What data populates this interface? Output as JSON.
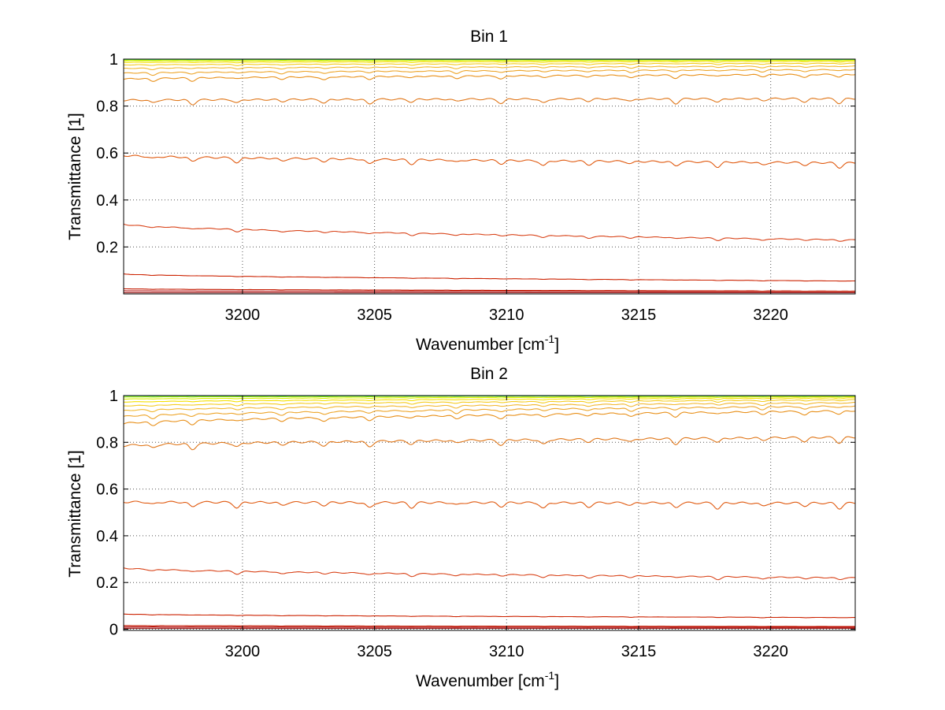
{
  "chart_data": [
    {
      "type": "line",
      "title": "Bin 1",
      "xlabel": "Wavenumber [cm",
      "xlabel_sup": "-1",
      "xlabel_end": "]",
      "ylabel": "Transmittance [1]",
      "xlim": [
        3195.5,
        3223.2
      ],
      "ylim": [
        0.0,
        1.0
      ],
      "xticks": [
        3200,
        3205,
        3210,
        3215,
        3220
      ],
      "xtick_labels": [
        "3200",
        "3205",
        "3210",
        "3215",
        "3220"
      ],
      "yticks": [
        0.2,
        0.4,
        0.6,
        0.8,
        1.0
      ],
      "ytick_labels": [
        "0.2",
        "0.4",
        "0.6",
        "0.8",
        "1"
      ],
      "grid": true,
      "series": [
        {
          "start": 0.005,
          "end": 0.005,
          "depth": 0.0,
          "color": "#8b0000"
        },
        {
          "start": 0.013,
          "end": 0.01,
          "depth": 0.0,
          "color": "#b00000"
        },
        {
          "start": 0.022,
          "end": 0.012,
          "depth": 0.001,
          "color": "#c41a00"
        },
        {
          "start": 0.085,
          "end": 0.055,
          "depth": 0.002,
          "color": "#cc2200"
        },
        {
          "start": 0.297,
          "end": 0.23,
          "depth": 0.01,
          "color": "#d9441a"
        },
        {
          "start": 0.59,
          "end": 0.558,
          "depth": 0.022,
          "color": "#e05a10"
        },
        {
          "start": 0.825,
          "end": 0.832,
          "depth": 0.02,
          "color": "#e0771a"
        },
        {
          "start": 0.915,
          "end": 0.935,
          "depth": 0.014,
          "color": "#e8901a"
        },
        {
          "start": 0.94,
          "end": 0.955,
          "depth": 0.01,
          "color": "#eda52a"
        },
        {
          "start": 0.96,
          "end": 0.97,
          "depth": 0.007,
          "color": "#f2b830"
        },
        {
          "start": 0.975,
          "end": 0.982,
          "depth": 0.005,
          "color": "#f5cc20"
        },
        {
          "start": 0.986,
          "end": 0.99,
          "depth": 0.003,
          "color": "#f5e000"
        },
        {
          "start": 0.993,
          "end": 0.995,
          "depth": 0.002,
          "color": "#d8f000"
        },
        {
          "start": 0.997,
          "end": 0.998,
          "depth": 0.001,
          "color": "#9cf000"
        },
        {
          "start": 0.999,
          "end": 0.999,
          "depth": 0.001,
          "color": "#40e080"
        },
        {
          "start": 1.0,
          "end": 1.0,
          "depth": 0.0,
          "color": "#20c8e0"
        }
      ]
    },
    {
      "type": "line",
      "title": "Bin 2",
      "xlabel": "Wavenumber [cm",
      "xlabel_sup": "-1",
      "xlabel_end": "]",
      "ylabel": "Transmittance [1]",
      "xlim": [
        3195.5,
        3223.2
      ],
      "ylim": [
        0.0,
        1.0
      ],
      "xticks": [
        3200,
        3205,
        3210,
        3215,
        3220
      ],
      "xtick_labels": [
        "3200",
        "3205",
        "3210",
        "3215",
        "3220"
      ],
      "yticks": [
        0.0,
        0.2,
        0.4,
        0.6,
        0.8,
        1.0
      ],
      "ytick_labels": [
        "0",
        "0.2",
        "0.4",
        "0.6",
        "0.8",
        "1"
      ],
      "grid": true,
      "series": [
        {
          "start": 0.004,
          "end": 0.004,
          "depth": 0.0,
          "color": "#8b0000"
        },
        {
          "start": 0.01,
          "end": 0.008,
          "depth": 0.0,
          "color": "#b00000"
        },
        {
          "start": 0.016,
          "end": 0.012,
          "depth": 0.001,
          "color": "#c41a00"
        },
        {
          "start": 0.065,
          "end": 0.05,
          "depth": 0.002,
          "color": "#cc2200"
        },
        {
          "start": 0.262,
          "end": 0.22,
          "depth": 0.012,
          "color": "#d9441a"
        },
        {
          "start": 0.545,
          "end": 0.54,
          "depth": 0.025,
          "color": "#e05a10"
        },
        {
          "start": 0.785,
          "end": 0.822,
          "depth": 0.024,
          "color": "#e0771a"
        },
        {
          "start": 0.88,
          "end": 0.935,
          "depth": 0.018,
          "color": "#e8901a"
        },
        {
          "start": 0.91,
          "end": 0.955,
          "depth": 0.014,
          "color": "#eda52a"
        },
        {
          "start": 0.935,
          "end": 0.97,
          "depth": 0.01,
          "color": "#f2b830"
        },
        {
          "start": 0.955,
          "end": 0.982,
          "depth": 0.007,
          "color": "#f5cc20"
        },
        {
          "start": 0.972,
          "end": 0.99,
          "depth": 0.004,
          "color": "#f5e000"
        },
        {
          "start": 0.985,
          "end": 0.995,
          "depth": 0.002,
          "color": "#d8f000"
        },
        {
          "start": 0.994,
          "end": 0.998,
          "depth": 0.001,
          "color": "#9cf000"
        },
        {
          "start": 0.999,
          "end": 0.999,
          "depth": 0.001,
          "color": "#40e080"
        },
        {
          "start": 1.0,
          "end": 1.0,
          "depth": 0.0,
          "color": "#20c8e0"
        }
      ]
    }
  ]
}
